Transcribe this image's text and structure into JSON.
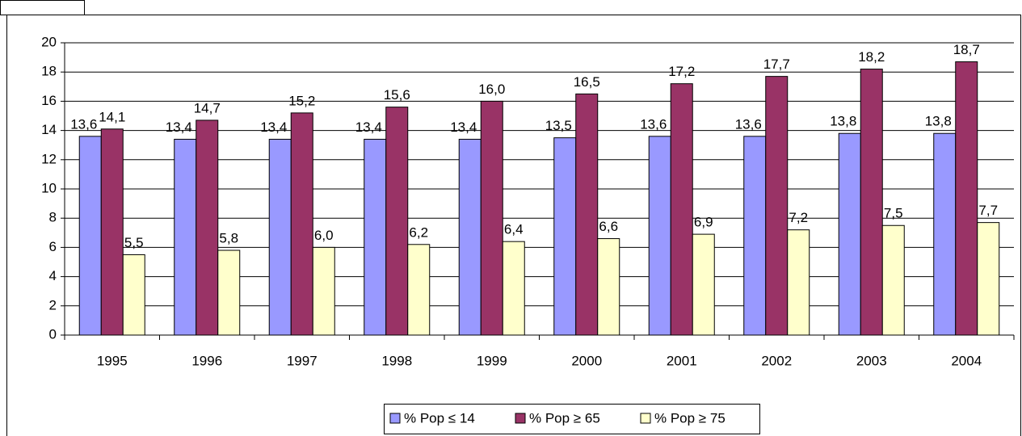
{
  "chart_data": {
    "type": "bar",
    "categories": [
      "1995",
      "1996",
      "1997",
      "1998",
      "1999",
      "2000",
      "2001",
      "2002",
      "2003",
      "2004"
    ],
    "series": [
      {
        "name": "% Pop ≤ 14",
        "color": "#9999ff",
        "values": [
          13.6,
          13.4,
          13.4,
          13.4,
          13.4,
          13.5,
          13.6,
          13.6,
          13.8,
          13.8
        ],
        "value_labels": [
          "13,6",
          "13,4",
          "13,4",
          "13,4",
          "13,4",
          "13,5",
          "13,6",
          "13,6",
          "13,8",
          "13,8"
        ]
      },
      {
        "name": "% Pop ≥ 65",
        "color": "#993366",
        "values": [
          14.1,
          14.7,
          15.2,
          15.6,
          16.0,
          16.5,
          17.2,
          17.7,
          18.2,
          18.7
        ],
        "value_labels": [
          "14,1",
          "14,7",
          "15,2",
          "15,6",
          "16,0",
          "16,5",
          "17,2",
          "17,7",
          "18,2",
          "18,7"
        ]
      },
      {
        "name": "% Pop ≥ 75",
        "color": "#ffffcc",
        "values": [
          5.5,
          5.8,
          6.0,
          6.2,
          6.4,
          6.6,
          6.9,
          7.2,
          7.5,
          7.7
        ],
        "value_labels": [
          "5,5",
          "5,8",
          "6,0",
          "6,2",
          "6,4",
          "6,6",
          "6,9",
          "7,2",
          "7,5",
          "7,7"
        ]
      }
    ],
    "ylim": [
      0,
      20
    ],
    "yticks": [
      0,
      2,
      4,
      6,
      8,
      10,
      12,
      14,
      16,
      18,
      20
    ],
    "grid": true,
    "legend": "bottom"
  }
}
